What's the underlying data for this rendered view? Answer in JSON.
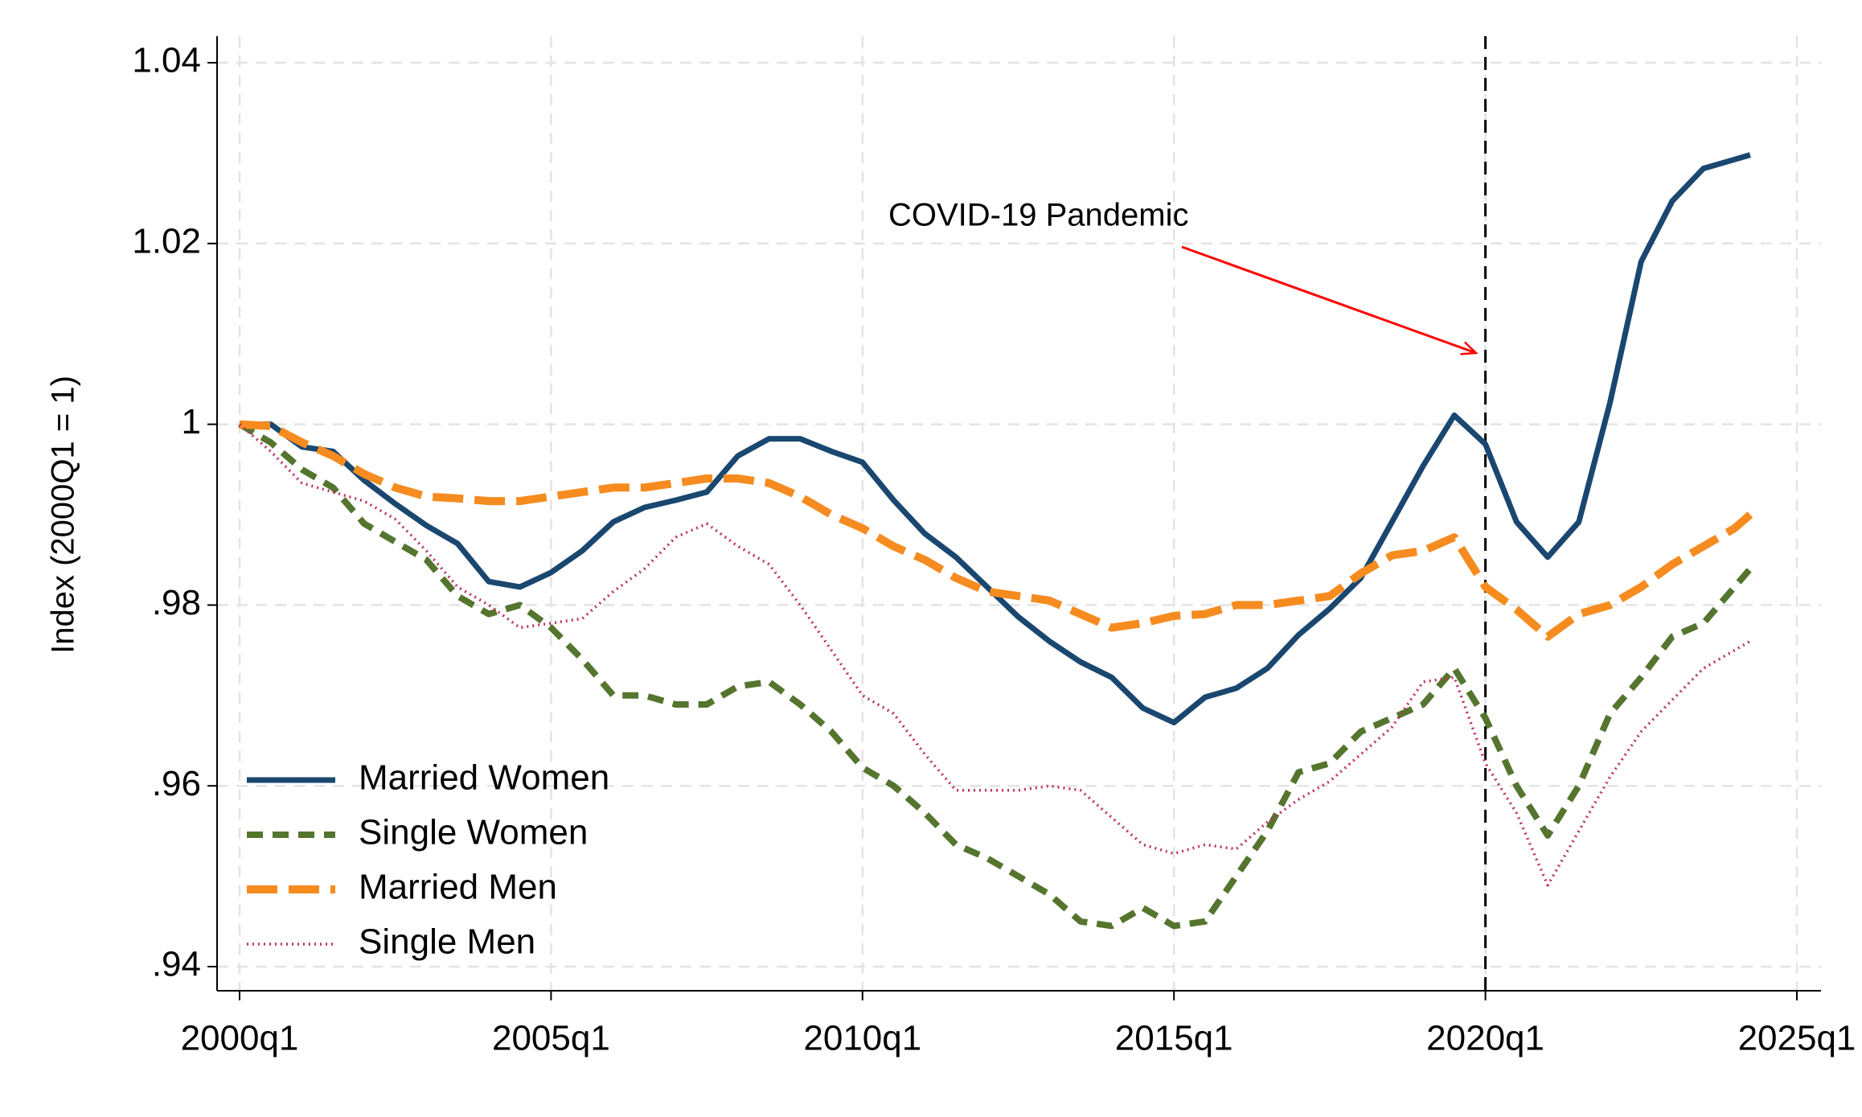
{
  "chart_data": {
    "type": "line",
    "ylabel": "Index (2000Q1 = 1)",
    "x": [
      2000,
      2000.5,
      2001,
      2001.5,
      2002,
      2002.5,
      2003,
      2003.5,
      2004,
      2004.5,
      2005,
      2005.5,
      2006,
      2006.5,
      2007,
      2007.5,
      2008,
      2008.5,
      2009,
      2009.5,
      2010,
      2010.5,
      2011,
      2011.5,
      2012,
      2012.5,
      2013,
      2013.5,
      2014,
      2014.5,
      2015,
      2015.5,
      2016,
      2016.5,
      2017,
      2017.5,
      2018,
      2018.5,
      2019,
      2019.5,
      2020,
      2020.5,
      2021,
      2021.5,
      2022,
      2022.5,
      2023,
      2023.5,
      2024,
      2024.25
    ],
    "series": [
      {
        "name": "Married Women",
        "color": "#1a476f",
        "style": "solid",
        "values": [
          1.0,
          1.0,
          0.9975,
          0.997,
          0.9938,
          0.9912,
          0.9888,
          0.9868,
          0.9826,
          0.982,
          0.9836,
          0.986,
          0.9892,
          0.9908,
          0.9916,
          0.9925,
          0.9965,
          0.9984,
          0.9984,
          0.997,
          0.9958,
          0.9916,
          0.9879,
          0.9853,
          0.982,
          0.9787,
          0.976,
          0.9737,
          0.972,
          0.9686,
          0.967,
          0.9698,
          0.9708,
          0.973,
          0.9767,
          0.9796,
          0.983,
          0.9892,
          0.9954,
          1.001,
          0.9978,
          0.9892,
          0.9853,
          0.9892,
          1.0024,
          1.018,
          1.0247,
          1.0283,
          1.0293,
          1.0298
        ]
      },
      {
        "name": "Single Women",
        "color": "#55752f",
        "style": "dash",
        "values": [
          1.0,
          0.998,
          0.995,
          0.993,
          0.989,
          0.987,
          0.985,
          0.981,
          0.979,
          0.98,
          0.9775,
          0.974,
          0.97,
          0.97,
          0.969,
          0.969,
          0.971,
          0.9715,
          0.969,
          0.966,
          0.962,
          0.96,
          0.957,
          0.9535,
          0.952,
          0.95,
          0.948,
          0.945,
          0.9445,
          0.9465,
          0.9445,
          0.945,
          0.95,
          0.955,
          0.9615,
          0.9625,
          0.966,
          0.9675,
          0.969,
          0.973,
          0.9675,
          0.96,
          0.9545,
          0.96,
          0.968,
          0.972,
          0.9765,
          0.978,
          0.982,
          0.984
        ]
      },
      {
        "name": "Married Men",
        "color": "#f68b1f",
        "style": "longdash",
        "values": [
          1.0,
          0.9998,
          0.998,
          0.9965,
          0.9945,
          0.993,
          0.992,
          0.9918,
          0.9915,
          0.9915,
          0.992,
          0.9925,
          0.993,
          0.993,
          0.9935,
          0.994,
          0.994,
          0.9935,
          0.992,
          0.99,
          0.9885,
          0.9865,
          0.985,
          0.983,
          0.9815,
          0.981,
          0.9805,
          0.979,
          0.9775,
          0.978,
          0.9788,
          0.979,
          0.98,
          0.98,
          0.9805,
          0.981,
          0.9835,
          0.9855,
          0.986,
          0.9875,
          0.982,
          0.9795,
          0.9765,
          0.979,
          0.98,
          0.982,
          0.9845,
          0.9865,
          0.9885,
          0.99
        ]
      },
      {
        "name": "Single Men",
        "color": "#c0305e",
        "style": "dot",
        "values": [
          1.0,
          0.997,
          0.9935,
          0.9925,
          0.9915,
          0.9895,
          0.986,
          0.982,
          0.98,
          0.9775,
          0.978,
          0.9785,
          0.9815,
          0.984,
          0.9875,
          0.989,
          0.9865,
          0.9845,
          0.98,
          0.975,
          0.97,
          0.968,
          0.9635,
          0.9595,
          0.9595,
          0.9595,
          0.96,
          0.9595,
          0.9565,
          0.9535,
          0.9525,
          0.9535,
          0.953,
          0.956,
          0.9585,
          0.9605,
          0.9635,
          0.9665,
          0.9715,
          0.972,
          0.9625,
          0.957,
          0.949,
          0.955,
          0.961,
          0.966,
          0.9695,
          0.973,
          0.975,
          0.976
        ]
      }
    ],
    "xlim": [
      2000,
      2025
    ],
    "xticks": [
      {
        "value": 2000,
        "label": "2000q1"
      },
      {
        "value": 2005,
        "label": "2005q1"
      },
      {
        "value": 2010,
        "label": "2010q1"
      },
      {
        "value": 2015,
        "label": "2015q1"
      },
      {
        "value": 2020,
        "label": "2020q1"
      },
      {
        "value": 2025,
        "label": "2025q1"
      }
    ],
    "ylim": [
      0.94,
      1.04
    ],
    "yticks": [
      {
        "value": 0.94,
        "label": ".94"
      },
      {
        "value": 0.96,
        "label": ".96"
      },
      {
        "value": 0.98,
        "label": ".98"
      },
      1,
      1.02,
      1.04
    ],
    "grid": true,
    "legend": "lower left",
    "vline": 2020,
    "annotation": {
      "text": "COVID-19 Pandemic",
      "color": "#ff0000"
    }
  }
}
